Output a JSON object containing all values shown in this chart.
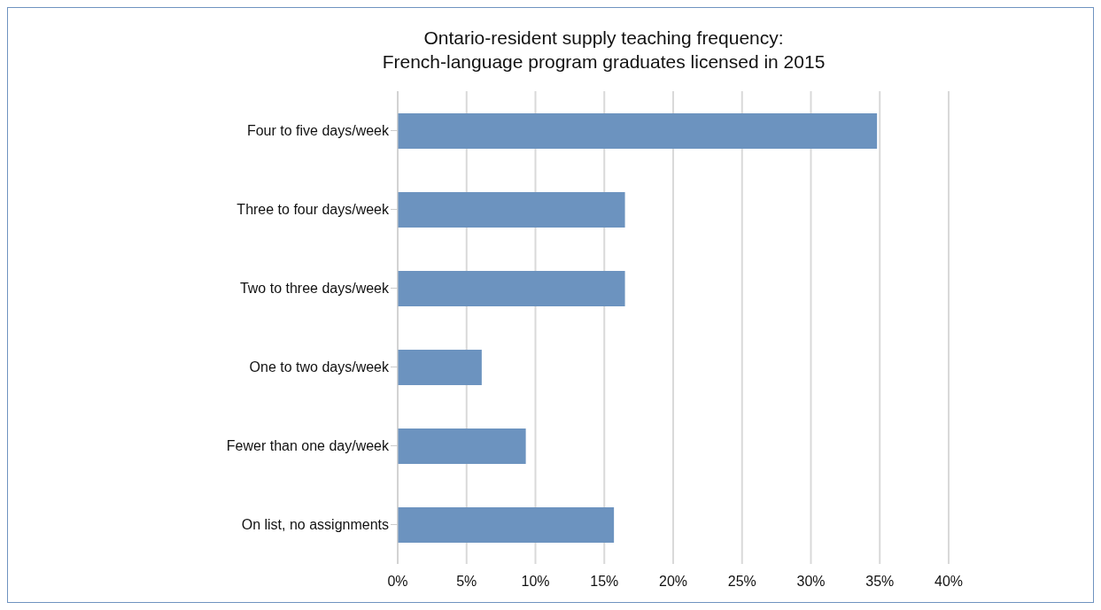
{
  "chart_data": {
    "type": "bar",
    "orientation": "horizontal",
    "title": "Ontario-resident supply teaching frequency:\nFrench-language program graduates licensed in 2015",
    "categories": [
      "Four to five days/week",
      "Three to four days/week",
      "Two to three days/week",
      "One to two days/week",
      "Fewer than one day/week",
      "On list, no assignments"
    ],
    "values": [
      34.8,
      16.5,
      16.5,
      6.1,
      9.3,
      15.7
    ],
    "color": "#6c93bf",
    "xlim": [
      0,
      40
    ],
    "xticks": [
      {
        "value": 0,
        "label": "0%"
      },
      {
        "value": 5,
        "label": "5%"
      },
      {
        "value": 10,
        "label": "10%"
      },
      {
        "value": 15,
        "label": "15%"
      },
      {
        "value": 20,
        "label": "20%"
      },
      {
        "value": 25,
        "label": "25%"
      },
      {
        "value": 30,
        "label": "30%"
      },
      {
        "value": 35,
        "label": "35%"
      },
      {
        "value": 40,
        "label": "40%"
      }
    ],
    "grid": "x",
    "legend": false
  }
}
